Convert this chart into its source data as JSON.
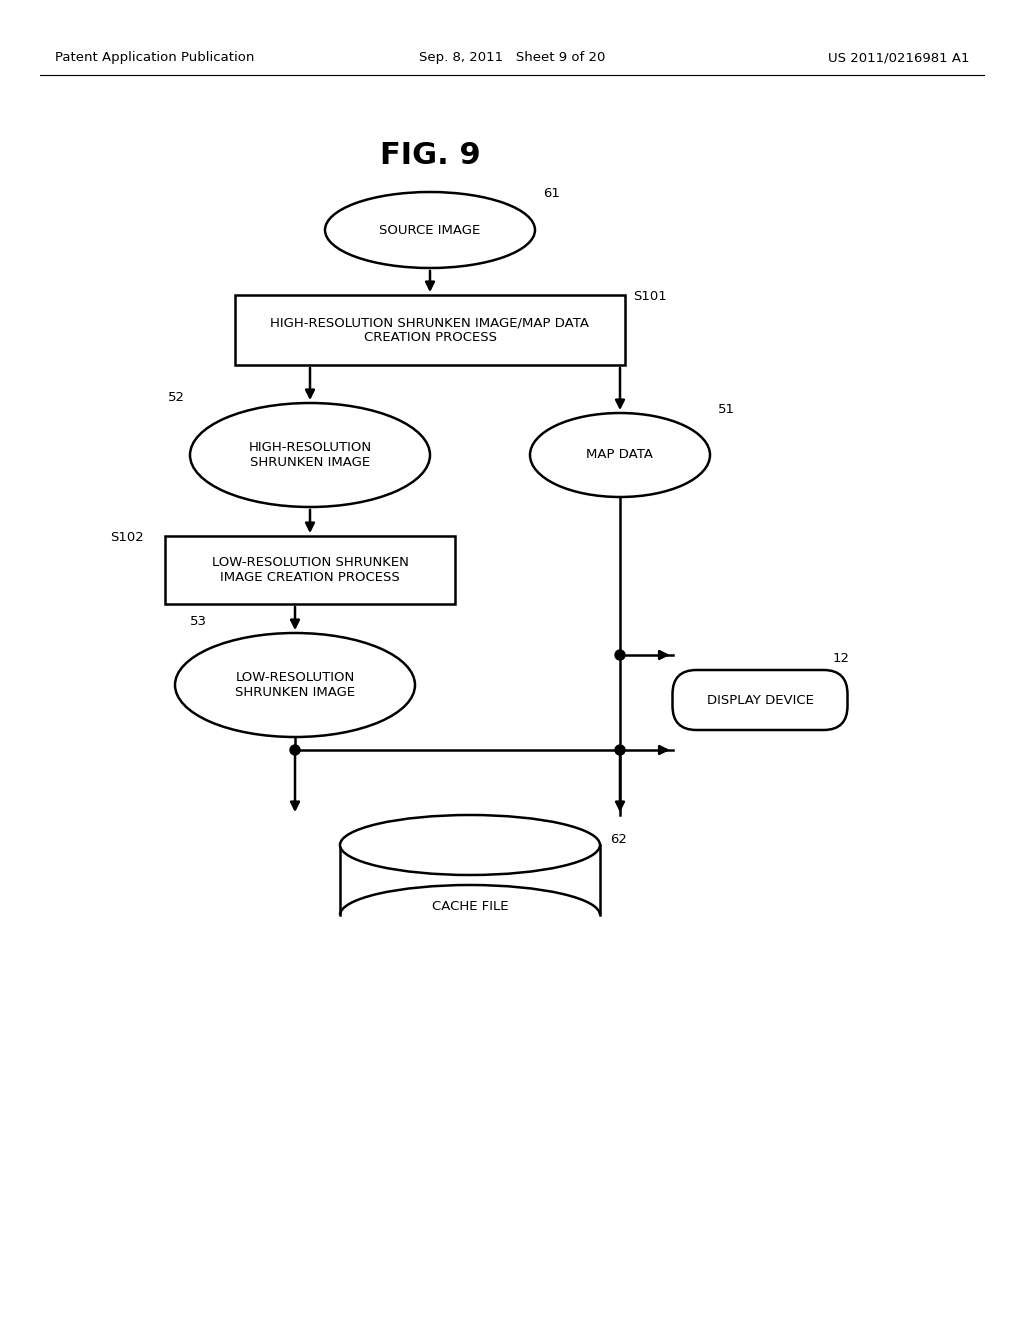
{
  "title": "FIG. 9",
  "header_left": "Patent Application Publication",
  "header_mid": "Sep. 8, 2011   Sheet 9 of 20",
  "header_right": "US 2011/0216981 A1",
  "bg_color": "#ffffff",
  "fig_width": 10.24,
  "fig_height": 13.2,
  "dpi": 100
}
